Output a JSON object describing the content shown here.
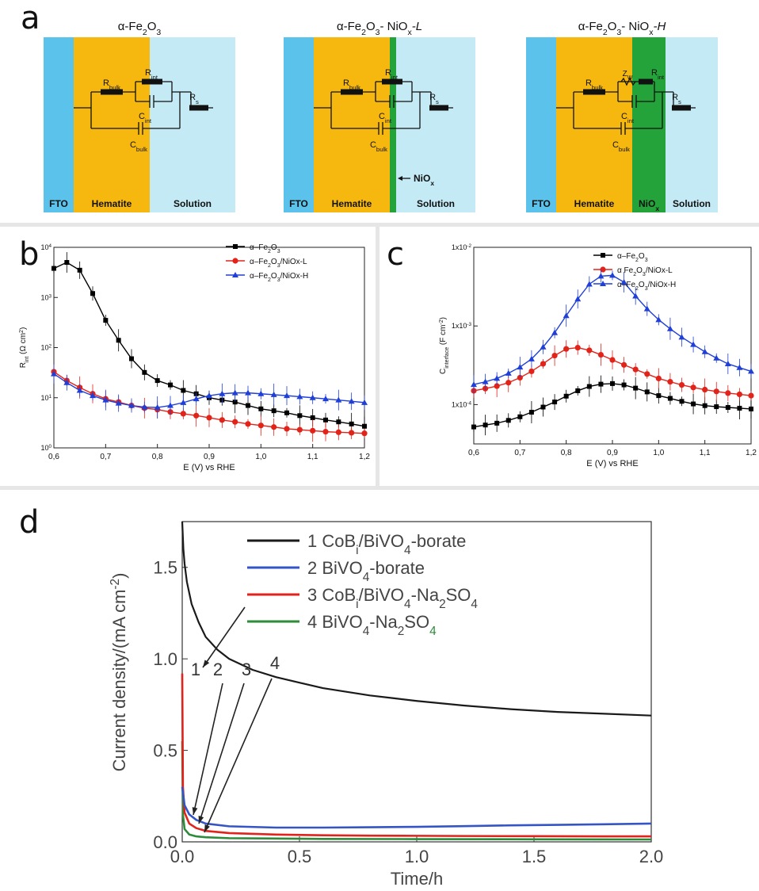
{
  "panel_a": {
    "letter": "a",
    "diagrams": [
      {
        "title_main": "α-Fe",
        "title_sub1": "2",
        "title_mid": "O",
        "title_sub2": "3",
        "title_tail": "",
        "title_sub3": "",
        "title_ital": "",
        "variant": "none",
        "layers": {
          "fto": "FTO",
          "hematite": "Hematite",
          "nio": "",
          "solution": "Solution"
        },
        "labels": {
          "r_bulk": "R",
          "r_bulk_sub": "bulk",
          "r_int": "R",
          "r_int_sub": "int",
          "c_int": "C",
          "c_int_sub": "int",
          "c_bulk": "C",
          "c_bulk_sub": "bulk",
          "rs": "R",
          "rs_sub": "s",
          "zw": "",
          "zw_sub": "",
          "nio_note": "",
          "nio_note_sub": ""
        }
      },
      {
        "title_main": "α-Fe",
        "title_sub1": "2",
        "title_mid": "O",
        "title_sub2": "3",
        "title_tail": "- NiO",
        "title_sub3": "x",
        "title_ital": "-L",
        "variant": "thin",
        "layers": {
          "fto": "FTO",
          "hematite": "Hematite",
          "nio": "",
          "solution": "Solution"
        },
        "labels": {
          "r_bulk": "R",
          "r_bulk_sub": "bulk",
          "r_int": "R",
          "r_int_sub": "int",
          "c_int": "C",
          "c_int_sub": "int",
          "c_bulk": "C",
          "c_bulk_sub": "bulk",
          "rs": "R",
          "rs_sub": "s",
          "zw": "",
          "zw_sub": "",
          "nio_note": "NiO",
          "nio_note_sub": "x"
        }
      },
      {
        "title_main": "α-Fe",
        "title_sub1": "2",
        "title_mid": "O",
        "title_sub2": "3",
        "title_tail": "- NiO",
        "title_sub3": "x",
        "title_ital": "-H",
        "variant": "thick",
        "layers": {
          "fto": "FTO",
          "hematite": "Hematite",
          "nio": "NiO",
          "nio_sub": "x",
          "solution": "Solution"
        },
        "labels": {
          "r_bulk": "R",
          "r_bulk_sub": "bulk",
          "r_int": "R",
          "r_int_sub": "int",
          "c_int": "C",
          "c_int_sub": "int",
          "c_bulk": "C",
          "c_bulk_sub": "bulk",
          "rs": "R",
          "rs_sub": "s",
          "zw": "Z",
          "zw_sub": "W",
          "nio_note": "",
          "nio_note_sub": ""
        }
      }
    ],
    "colors": {
      "fto": "#5bc2ec",
      "hematite": "#f6b80e",
      "nio": "#23a33a",
      "solution": "#c3eaf5"
    }
  },
  "chart_data": [
    {
      "panel": "b",
      "type": "line",
      "ylabel_main": "R",
      "ylabel_sub": "int",
      "ylabel_unit": " (Ω cm",
      "ylabel_sup": "2",
      "ylabel_close": ")",
      "xlabel": "E (V) vs RHE",
      "xlim": [
        0.6,
        1.2
      ],
      "ylim_log10": [
        0,
        4
      ],
      "yscale": "log",
      "xticks": [
        "0,6",
        "0,7",
        "0,8",
        "0,9",
        "1,0",
        "1,1",
        "1,2"
      ],
      "yticks": [
        {
          "base": "10",
          "exp": "0"
        },
        {
          "base": "10",
          "exp": "1"
        },
        {
          "base": "10",
          "exp": "2"
        },
        {
          "base": "10",
          "exp": "3"
        },
        {
          "base": "10",
          "exp": "4"
        }
      ],
      "legend_position": "top-right",
      "series": [
        {
          "name": "α–Fe₂O₃",
          "name_parts": [
            "α–Fe",
            "2",
            "O",
            "3",
            ""
          ],
          "color": "#000000",
          "marker": "square",
          "x": [
            0.6,
            0.625,
            0.65,
            0.675,
            0.7,
            0.725,
            0.75,
            0.775,
            0.8,
            0.825,
            0.85,
            0.875,
            0.9,
            0.925,
            0.95,
            0.975,
            1.0,
            1.025,
            1.05,
            1.075,
            1.1,
            1.125,
            1.15,
            1.175,
            1.2
          ],
          "y": [
            3800,
            5000,
            3500,
            1200,
            350,
            140,
            60,
            32,
            22,
            18,
            14,
            12,
            10,
            9,
            8.2,
            7,
            6,
            5.5,
            5,
            4.4,
            4,
            3.6,
            3.3,
            3,
            2.7
          ]
        },
        {
          "name": "α–Fe₂O₃/NiOx-L",
          "name_parts": [
            "α–Fe",
            "2",
            "O",
            "3",
            "/NiOx-L"
          ],
          "color": "#e2231a",
          "marker": "circle",
          "x": [
            0.6,
            0.625,
            0.65,
            0.675,
            0.7,
            0.725,
            0.75,
            0.775,
            0.8,
            0.825,
            0.85,
            0.875,
            0.9,
            0.925,
            0.95,
            0.975,
            1.0,
            1.025,
            1.05,
            1.075,
            1.1,
            1.125,
            1.15,
            1.175,
            1.2
          ],
          "y": [
            33,
            22,
            16,
            12,
            9.5,
            8.2,
            7,
            6.2,
            5.8,
            5.2,
            4.8,
            4.4,
            4,
            3.6,
            3.3,
            3,
            2.8,
            2.6,
            2.4,
            2.3,
            2.2,
            2.1,
            2.05,
            2.0,
            1.95
          ]
        },
        {
          "name": "α–Fe₂O₃/NiOx-H",
          "name_parts": [
            "α–Fe",
            "2",
            "O",
            "3",
            "/NiOx-H"
          ],
          "color": "#1f3fd6",
          "marker": "triangle",
          "x": [
            0.6,
            0.625,
            0.65,
            0.675,
            0.7,
            0.725,
            0.75,
            0.775,
            0.8,
            0.825,
            0.85,
            0.875,
            0.9,
            0.925,
            0.95,
            0.975,
            1.0,
            1.025,
            1.05,
            1.075,
            1.1,
            1.125,
            1.15,
            1.175,
            1.2
          ],
          "y": [
            30,
            20,
            14,
            11,
            9,
            7.8,
            7,
            6.5,
            6.4,
            7,
            8,
            9.5,
            11,
            12,
            12.5,
            12.5,
            12,
            11.5,
            11,
            10.5,
            10,
            9.5,
            9,
            8.5,
            8
          ]
        }
      ]
    },
    {
      "panel": "c",
      "type": "line",
      "ylabel_main": "C",
      "ylabel_sub": "interface",
      "ylabel_unit": " (F cm",
      "ylabel_sup": "-2",
      "ylabel_close": ")",
      "xlabel": "E (V) vs RHE",
      "xlim": [
        0.6,
        1.2
      ],
      "ylim_log10": [
        -4.5,
        -2
      ],
      "yscale": "log",
      "xticks": [
        "0,6",
        "0,7",
        "0,8",
        "0,9",
        "1,0",
        "1,1",
        "1,2"
      ],
      "yticks": [
        {
          "base": "1x10",
          "exp": "-4",
          "value_log10": -4
        },
        {
          "base": "1x10",
          "exp": "-3",
          "value_log10": -3
        },
        {
          "base": "1x10",
          "exp": "-2",
          "value_log10": -2
        }
      ],
      "legend_position": "top-right",
      "series": [
        {
          "name": "α–Fe₂O₃",
          "name_parts": [
            "α–Fe",
            "2",
            "O",
            "3",
            ""
          ],
          "color": "#000000",
          "marker": "square",
          "x": [
            0.6,
            0.625,
            0.65,
            0.675,
            0.7,
            0.725,
            0.75,
            0.775,
            0.8,
            0.825,
            0.85,
            0.875,
            0.9,
            0.925,
            0.95,
            0.975,
            1.0,
            1.025,
            1.05,
            1.075,
            1.1,
            1.125,
            1.15,
            1.175,
            1.2
          ],
          "y": [
            5.2e-05,
            5.5e-05,
            5.8e-05,
            6.3e-05,
            7e-05,
            8e-05,
            9.3e-05,
            0.000108,
            0.000128,
            0.00015,
            0.00017,
            0.000182,
            0.000185,
            0.000178,
            0.000162,
            0.000145,
            0.00013,
            0.00012,
            0.00011,
            0.000102,
            9.7e-05,
            9.4e-05,
            9.2e-05,
            9e-05,
            8.8e-05
          ]
        },
        {
          "name": "α Fe₂O₃/NiOx-L",
          "name_parts": [
            "α  Fe",
            "2",
            "O",
            "3",
            "/NiOx-L"
          ],
          "color": "#e2231a",
          "marker": "circle",
          "x": [
            0.6,
            0.625,
            0.65,
            0.675,
            0.7,
            0.725,
            0.75,
            0.775,
            0.8,
            0.825,
            0.85,
            0.875,
            0.9,
            0.925,
            0.95,
            0.975,
            1.0,
            1.025,
            1.05,
            1.075,
            1.1,
            1.125,
            1.15,
            1.175,
            1.2
          ],
          "y": [
            0.00015,
            0.00016,
            0.000172,
            0.00019,
            0.00022,
            0.000265,
            0.00033,
            0.00042,
            0.00051,
            0.00053,
            0.00049,
            0.00043,
            0.00037,
            0.00032,
            0.00028,
            0.000245,
            0.000215,
            0.000195,
            0.000178,
            0.000165,
            0.000155,
            0.000147,
            0.00014,
            0.000135,
            0.00013
          ]
        },
        {
          "name": "α–Fe₂O₃/NiOx-H",
          "name_parts": [
            "α–Fe",
            "2",
            "O",
            "3",
            "/NiOx-H"
          ],
          "color": "#1f3fd6",
          "marker": "triangle",
          "x": [
            0.6,
            0.625,
            0.65,
            0.675,
            0.7,
            0.725,
            0.75,
            0.775,
            0.8,
            0.825,
            0.85,
            0.875,
            0.9,
            0.925,
            0.95,
            0.975,
            1.0,
            1.025,
            1.05,
            1.075,
            1.1,
            1.125,
            1.15,
            1.175,
            1.2
          ],
          "y": [
            0.00018,
            0.000195,
            0.000215,
            0.00025,
            0.0003,
            0.00038,
            0.00054,
            0.00082,
            0.00135,
            0.0022,
            0.0034,
            0.0043,
            0.0044,
            0.0036,
            0.0024,
            0.00165,
            0.0012,
            0.00092,
            0.00072,
            0.00058,
            0.00047,
            0.00039,
            0.00033,
            0.000295,
            0.000265
          ]
        }
      ]
    },
    {
      "panel": "d",
      "type": "line",
      "ylabel": "Current density/(mA cm",
      "ylabel_sup": "-2",
      "ylabel_close": ")",
      "xlabel": "Time/h",
      "xlim": [
        0,
        2.0
      ],
      "ylim": [
        0,
        1.75
      ],
      "xticks": [
        "0.0",
        "0.5",
        "1.0",
        "1.5",
        "2.0"
      ],
      "yticks": [
        "0.0",
        "0.5",
        "1.0",
        "1.5"
      ],
      "legend_position": "top",
      "series": [
        {
          "name": "1 CoBi/BiVO4-borate",
          "legend_parts": [
            {
              "t": "1 CoB"
            },
            {
              "t": "i",
              "sub": true
            },
            {
              "t": "/BiVO"
            },
            {
              "t": "4",
              "sub": true
            },
            {
              "t": "-borate"
            }
          ],
          "color": "#1a1a1a",
          "x": [
            0.0,
            0.005,
            0.01,
            0.02,
            0.04,
            0.07,
            0.1,
            0.15,
            0.2,
            0.3,
            0.4,
            0.5,
            0.6,
            0.7,
            0.8,
            0.9,
            1.0,
            1.2,
            1.4,
            1.6,
            1.8,
            2.0
          ],
          "y": [
            1.75,
            1.6,
            1.52,
            1.42,
            1.3,
            1.2,
            1.12,
            1.05,
            1.0,
            0.94,
            0.9,
            0.87,
            0.84,
            0.82,
            0.8,
            0.785,
            0.77,
            0.745,
            0.725,
            0.71,
            0.7,
            0.69
          ]
        },
        {
          "name": "2 BiVO4-borate",
          "legend_parts": [
            {
              "t": "2 BiVO"
            },
            {
              "t": "4",
              "sub": true
            },
            {
              "t": "-borate"
            }
          ],
          "color": "#3555c4",
          "x": [
            0.0,
            0.01,
            0.03,
            0.06,
            0.1,
            0.2,
            0.4,
            0.6,
            0.8,
            1.0,
            1.2,
            1.4,
            1.6,
            1.8,
            2.0
          ],
          "y": [
            0.3,
            0.2,
            0.15,
            0.12,
            0.1,
            0.085,
            0.078,
            0.078,
            0.08,
            0.082,
            0.086,
            0.09,
            0.093,
            0.096,
            0.1
          ]
        },
        {
          "name": "3 CoBi/BiVO4-Na2SO4",
          "legend_parts": [
            {
              "t": "3 CoB"
            },
            {
              "t": "i",
              "sub": true
            },
            {
              "t": "/BiVO"
            },
            {
              "t": "4",
              "sub": true
            },
            {
              "t": "-Na"
            },
            {
              "t": "2",
              "sub": true
            },
            {
              "t": "SO"
            },
            {
              "t": "4",
              "sub": true
            }
          ],
          "color": "#e0231c",
          "x": [
            0.0,
            0.003,
            0.01,
            0.03,
            0.06,
            0.1,
            0.2,
            0.4,
            0.6,
            0.8,
            1.0,
            1.2,
            1.5,
            1.8,
            2.0
          ],
          "y": [
            0.92,
            0.3,
            0.16,
            0.1,
            0.075,
            0.06,
            0.048,
            0.04,
            0.036,
            0.034,
            0.033,
            0.032,
            0.031,
            0.03,
            0.03
          ]
        },
        {
          "name": "4 BiVO4-Na2SO4",
          "legend_parts": [
            {
              "t": "4 BiVO"
            },
            {
              "t": "4",
              "sub": true
            },
            {
              "t": "-Na"
            },
            {
              "t": "2",
              "sub": true
            },
            {
              "t": "SO"
            },
            {
              "t": "4",
              "sub": true,
              "green": true
            }
          ],
          "color": "#2e8b3a",
          "x": [
            0.0,
            0.003,
            0.01,
            0.03,
            0.06,
            0.1,
            0.2,
            0.4,
            0.6,
            1.0,
            1.5,
            2.0
          ],
          "y": [
            0.55,
            0.15,
            0.07,
            0.04,
            0.03,
            0.025,
            0.02,
            0.018,
            0.016,
            0.015,
            0.014,
            0.013
          ]
        }
      ],
      "annotations": [
        "1",
        "2",
        "3",
        "4"
      ]
    }
  ]
}
